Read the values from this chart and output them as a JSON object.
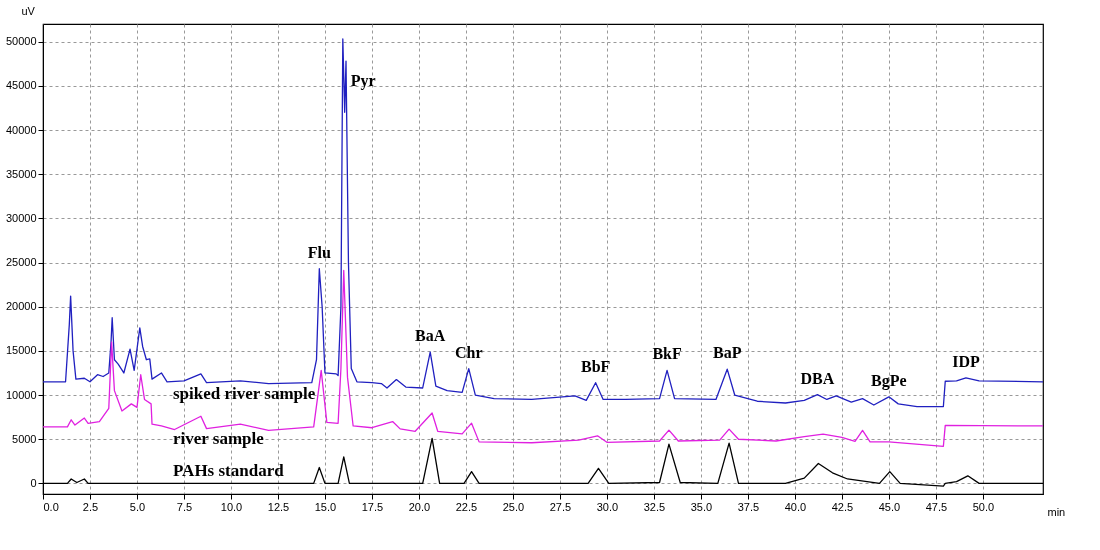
{
  "chart_data": {
    "type": "line",
    "xlabel": "min",
    "ylabel": "uV",
    "xlim": [
      0,
      53.2
    ],
    "ylim": [
      -1200,
      52000
    ],
    "xticks": [
      {
        "value": 0,
        "label": "0.0"
      },
      {
        "value": 2.5,
        "label": "2.5"
      },
      {
        "value": 5,
        "label": "5.0"
      },
      {
        "value": 7.5,
        "label": "7.5"
      },
      {
        "value": 10,
        "label": "10.0"
      },
      {
        "value": 12.5,
        "label": "12.5"
      },
      {
        "value": 15,
        "label": "15.0"
      },
      {
        "value": 17.5,
        "label": "17.5"
      },
      {
        "value": 20,
        "label": "20.0"
      },
      {
        "value": 22.5,
        "label": "22.5"
      },
      {
        "value": 25,
        "label": "25.0"
      },
      {
        "value": 27.5,
        "label": "27.5"
      },
      {
        "value": 30,
        "label": "30.0"
      },
      {
        "value": 32.5,
        "label": "32.5"
      },
      {
        "value": 35,
        "label": "35.0"
      },
      {
        "value": 37.5,
        "label": "37.5"
      },
      {
        "value": 40,
        "label": "40.0"
      },
      {
        "value": 42.5,
        "label": "42.5"
      },
      {
        "value": 45,
        "label": "45.0"
      },
      {
        "value": 47.5,
        "label": "47.5"
      },
      {
        "value": 50,
        "label": "50.0"
      }
    ],
    "yticks": [
      0,
      5000,
      10000,
      15000,
      20000,
      25000,
      30000,
      35000,
      40000,
      45000,
      50000
    ],
    "grid": true,
    "legend": false,
    "marker": "none",
    "line_style": "solid",
    "series": [
      {
        "name": "spiked river sample",
        "color": "#2020c0",
        "x": [
          0,
          1.2,
          1.4,
          1.47,
          1.6,
          1.75,
          2.2,
          2.5,
          2.9,
          3.2,
          3.5,
          3.62,
          3.68,
          3.8,
          4.0,
          4.3,
          4.63,
          4.85,
          5.15,
          5.3,
          5.5,
          5.68,
          5.8,
          6.3,
          6.6,
          7.5,
          8.4,
          8.7,
          10.5,
          12,
          14.3,
          14.55,
          14.7,
          14.85,
          15.0,
          15.6,
          15.7,
          15.85,
          15.95,
          16.05,
          16.12,
          16.25,
          16.4,
          16.7,
          17.5,
          18.0,
          18.3,
          18.8,
          19.3,
          20.2,
          20.6,
          20.9,
          21.5,
          22.3,
          22.65,
          23.0,
          24,
          26,
          28.3,
          28.9,
          29.4,
          29.8,
          31,
          32.8,
          33.2,
          33.6,
          35.8,
          36.4,
          36.8,
          38,
          39.5,
          40.5,
          41.2,
          41.7,
          42.2,
          43.0,
          43.6,
          44.2,
          45.0,
          45.5,
          46.5,
          47.9,
          48.0,
          48.6,
          49.1,
          49.8,
          53.2
        ],
        "values": [
          11500,
          11500,
          18000,
          21200,
          15000,
          11800,
          11900,
          11500,
          12300,
          12100,
          12500,
          16000,
          18750,
          14000,
          13500,
          12500,
          15200,
          12800,
          17600,
          15500,
          14000,
          14100,
          11800,
          12500,
          11500,
          11600,
          12400,
          11400,
          11600,
          11300,
          11400,
          14000,
          24300,
          20000,
          12500,
          12400,
          12200,
          20000,
          50300,
          42000,
          47800,
          25000,
          13000,
          11500,
          11400,
          11300,
          10800,
          11750,
          10900,
          10800,
          14870,
          11000,
          10500,
          10300,
          13000,
          10000,
          9600,
          9500,
          9900,
          9400,
          11400,
          9500,
          9500,
          9600,
          12800,
          9600,
          9500,
          12930,
          10000,
          9300,
          9100,
          9400,
          10050,
          9500,
          9900,
          9200,
          9600,
          8870,
          9800,
          9000,
          8700,
          8700,
          11560,
          11600,
          11950,
          11600,
          11500
        ]
      },
      {
        "name": "river sample",
        "color": "#e020e0",
        "x": [
          0,
          1.3,
          1.5,
          1.7,
          2.2,
          2.4,
          3.0,
          3.5,
          3.65,
          3.8,
          4.2,
          4.7,
          5.0,
          5.2,
          5.4,
          5.75,
          5.8,
          6.3,
          7,
          8.4,
          8.7,
          10.5,
          12,
          14.4,
          14.8,
          15.1,
          15.7,
          15.85,
          16.0,
          16.2,
          16.5,
          17.5,
          18.6,
          19.0,
          19.8,
          20.7,
          21.0,
          22.3,
          22.8,
          23.2,
          26,
          28.5,
          29.5,
          30,
          32.8,
          33.3,
          33.8,
          36,
          36.5,
          37,
          39,
          40.5,
          41.5,
          42.5,
          43.2,
          43.6,
          44.0,
          45,
          47.9,
          48.0,
          53.2
        ],
        "values": [
          6400,
          6400,
          7200,
          6600,
          7400,
          6800,
          7000,
          8500,
          16000,
          10500,
          8200,
          9000,
          8600,
          12300,
          9500,
          9000,
          6700,
          6500,
          6100,
          7600,
          6200,
          6700,
          6000,
          6400,
          12800,
          6900,
          6800,
          13000,
          24100,
          12000,
          6500,
          6300,
          7000,
          6170,
          5900,
          7970,
          5900,
          5600,
          6820,
          4700,
          4600,
          4900,
          5390,
          4650,
          4800,
          6030,
          4800,
          4900,
          6140,
          5000,
          4800,
          5300,
          5570,
          5200,
          4770,
          6000,
          4700,
          4700,
          4200,
          6570,
          6500
        ]
      },
      {
        "name": "PAHs standard",
        "color": "#000000",
        "x": [
          0,
          1.3,
          1.5,
          1.8,
          2.2,
          2.4,
          14.4,
          14.7,
          15.0,
          15.7,
          16.0,
          16.3,
          20.2,
          20.7,
          21.1,
          22.4,
          22.8,
          23.2,
          29,
          29.55,
          30.1,
          32.8,
          33.3,
          33.9,
          35.9,
          36.5,
          37.0,
          39.5,
          40.5,
          41.25,
          42.0,
          42.8,
          44.5,
          45.05,
          45.6,
          47.9,
          48.0,
          48.6,
          49.2,
          49.8,
          53.2
        ],
        "values": [
          0,
          0,
          500,
          100,
          500,
          0,
          0,
          1800,
          0,
          0,
          3000,
          0,
          0,
          5100,
          0,
          0,
          1330,
          0,
          0,
          1700,
          0,
          100,
          4450,
          100,
          0,
          4560,
          0,
          0,
          600,
          2260,
          1200,
          500,
          0,
          1330,
          0,
          -300,
          0,
          200,
          860,
          0,
          0
        ]
      }
    ],
    "annotations": [
      {
        "text": "Flu",
        "x": 14.7,
        "y": 24300
      },
      {
        "text": "Pyr",
        "x": 15.95,
        "y": 50300
      },
      {
        "text": "BaA",
        "x": 20.6,
        "y": 14870
      },
      {
        "text": "Chr",
        "x": 22.65,
        "y": 13000
      },
      {
        "text": "BbF",
        "x": 29.4,
        "y": 11400
      },
      {
        "text": "BkF",
        "x": 33.2,
        "y": 12800
      },
      {
        "text": "BaP",
        "x": 36.4,
        "y": 12930
      },
      {
        "text": "DBA",
        "x": 41.2,
        "y": 10050
      },
      {
        "text": "BgPe",
        "x": 45.0,
        "y": 9800
      },
      {
        "text": "IDP",
        "x": 49.1,
        "y": 11950
      }
    ]
  }
}
